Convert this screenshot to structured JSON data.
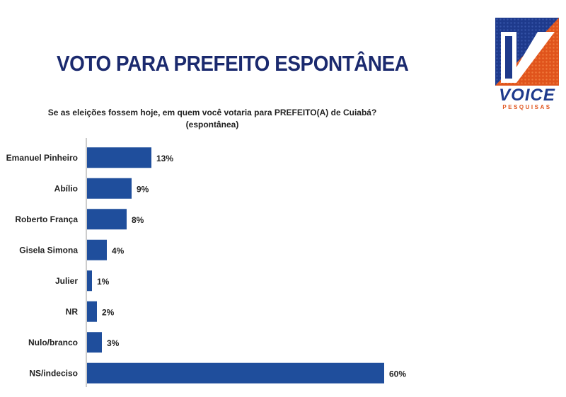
{
  "header": {
    "title": "VOTO PARA PREFEITO ESPONTÂNEA",
    "question_line1": "Se as eleições fossem hoje, em quem você votaria para PREFEITO(A) de Cuiabá?",
    "question_line2": "(espontânea)"
  },
  "logo": {
    "name": "VOICE",
    "tagline": "PESQUISAS",
    "colors": {
      "navy": "#1e3a8c",
      "orange": "#e0541c"
    }
  },
  "chart_data": {
    "type": "bar",
    "orientation": "horizontal",
    "categories": [
      "Emanuel Pinheiro",
      "Abílio",
      "Roberto França",
      "Gisela Simona",
      "Julier",
      "NR",
      "Nulo/branco",
      "NS/indeciso"
    ],
    "values": [
      13,
      9,
      8,
      4,
      1,
      2,
      3,
      60
    ],
    "value_labels": [
      "13%",
      "9%",
      "8%",
      "4%",
      "1%",
      "2%",
      "3%",
      "60%"
    ],
    "unit": "%",
    "xlim": [
      0,
      60
    ],
    "grid": false,
    "bar_color": "#1f4e9c"
  }
}
